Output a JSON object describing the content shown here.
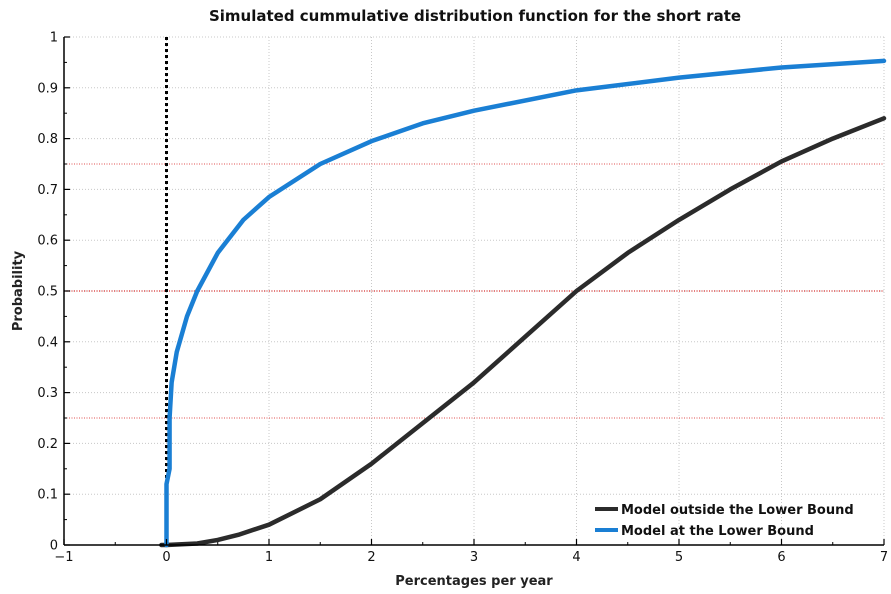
{
  "colors": {
    "outside": "#2b2b2b",
    "at_bound": "#1a7fd4",
    "guide": "#e05050",
    "zero_line": "#000000",
    "grid": "#c8c8c8"
  },
  "chart_data": {
    "type": "line",
    "title": "Simulated cummulative distribution function for the short rate",
    "xlabel": "Percentages per year",
    "ylabel": "Probability",
    "xlim": [
      -1,
      7
    ],
    "ylim": [
      0,
      1
    ],
    "xticks": [
      -1,
      0,
      1,
      2,
      3,
      4,
      5,
      6,
      7
    ],
    "xtick_labels": [
      "−1",
      "0",
      "1",
      "2",
      "3",
      "4",
      "5",
      "6",
      "7"
    ],
    "yticks": [
      0,
      0.1,
      0.2,
      0.3,
      0.4,
      0.5,
      0.6,
      0.7,
      0.8,
      0.9,
      1
    ],
    "ytick_labels": [
      "0",
      "0.1",
      "0.2",
      "0.3",
      "0.4",
      "0.5",
      "0.6",
      "0.7",
      "0.8",
      "0.9",
      "1"
    ],
    "grid": true,
    "legend_position": "bottom-right",
    "reference_lines": {
      "horizontal": [
        0.25,
        0.5,
        0.75
      ],
      "vertical": [
        0
      ]
    },
    "series": [
      {
        "name": "Model outside the Lower Bound",
        "color_key": "outside",
        "x": [
          -0.05,
          0,
          0.3,
          0.5,
          0.7,
          1.0,
          1.5,
          2.0,
          2.5,
          3.0,
          3.5,
          4.0,
          4.5,
          5.0,
          5.5,
          6.0,
          6.5,
          7.0
        ],
        "y": [
          0,
          0,
          0.003,
          0.01,
          0.02,
          0.04,
          0.09,
          0.16,
          0.24,
          0.32,
          0.41,
          0.5,
          0.575,
          0.64,
          0.7,
          0.755,
          0.8,
          0.84
        ]
      },
      {
        "name": "Model at the Lower Bound",
        "color_key": "at_bound",
        "x": [
          0,
          0,
          0.03,
          0.03,
          0.05,
          0.1,
          0.2,
          0.3,
          0.5,
          0.75,
          1.0,
          1.5,
          2.0,
          2.5,
          3.0,
          4.0,
          5.0,
          6.0,
          7.0
        ],
        "y": [
          0,
          0.12,
          0.15,
          0.25,
          0.32,
          0.38,
          0.45,
          0.5,
          0.575,
          0.64,
          0.685,
          0.75,
          0.795,
          0.83,
          0.855,
          0.895,
          0.92,
          0.94,
          0.953
        ]
      }
    ]
  }
}
